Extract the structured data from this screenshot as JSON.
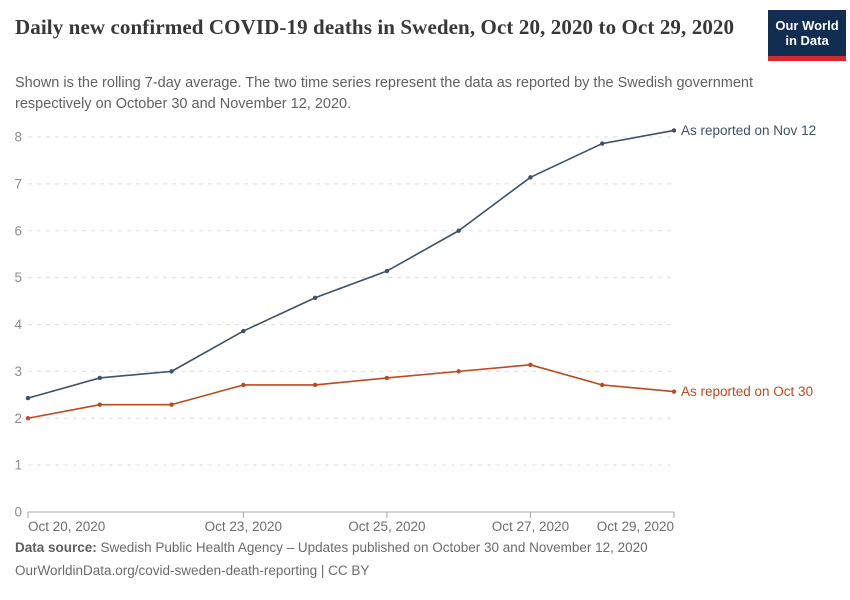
{
  "header": {
    "logo": {
      "line1": "Our World",
      "line2": "in Data",
      "bg_color": "#112d51",
      "accent_color": "#d8262c"
    }
  },
  "chart_data": {
    "type": "line",
    "title": "Daily new confirmed COVID-19 deaths in Sweden, Oct 20, 2020 to Oct 29, 2020",
    "subtitle": "Shown is the rolling 7-day average. The two time series represent the data as reported by the Swedish government respectively on October 30 and November 12, 2020.",
    "x": [
      "Oct 20, 2020",
      "Oct 21, 2020",
      "Oct 22, 2020",
      "Oct 23, 2020",
      "Oct 24, 2020",
      "Oct 25, 2020",
      "Oct 26, 2020",
      "Oct 27, 2020",
      "Oct 28, 2020",
      "Oct 29, 2020"
    ],
    "x_tick_labels": [
      "Oct 20, 2020",
      "Oct 23, 2020",
      "Oct 25, 2020",
      "Oct 27, 2020",
      "Oct 29, 2020"
    ],
    "x_tick_indices": [
      0,
      3,
      5,
      7,
      9
    ],
    "series": [
      {
        "name": "As reported on Nov 12",
        "color": "#3d5168",
        "values": [
          2.43,
          2.86,
          3.0,
          3.86,
          4.57,
          5.14,
          6.0,
          7.14,
          7.86,
          8.14
        ]
      },
      {
        "name": "As reported on Oct 30",
        "color": "#bc4a1f",
        "values": [
          2.0,
          2.29,
          2.29,
          2.71,
          2.71,
          2.86,
          3.0,
          3.14,
          2.71,
          2.57
        ]
      }
    ],
    "ylim": [
      0,
      8
    ],
    "yticks": [
      0,
      1,
      2,
      3,
      4,
      5,
      6,
      7,
      8
    ],
    "grid": "horizontal-dashed",
    "legend_position": "end-of-line-labels",
    "grid_color": "#dedede",
    "axis_color": "#a6a6a6",
    "ytick_label_color": "#8c8c8c",
    "xtick_label_color": "#6e6e6e"
  },
  "footer": {
    "source_label": "Data source:",
    "source_text": "Swedish Public Health Agency – Updates published on October 30 and November 12, 2020",
    "link_line": "OurWorldinData.org/covid-sweden-death-reporting | CC BY"
  }
}
